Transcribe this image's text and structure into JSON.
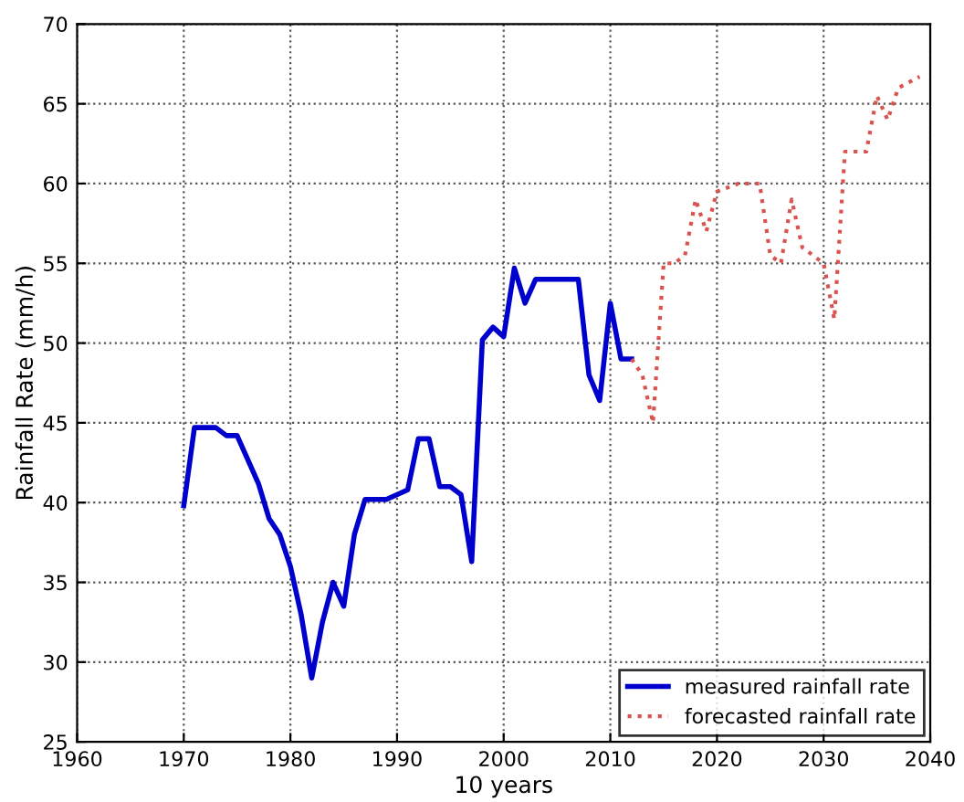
{
  "chart_data": {
    "type": "line",
    "xlabel": "10 years",
    "ylabel": "Rainfall Rate (mm/h)",
    "xlim": [
      1960,
      2040
    ],
    "xticks": [
      1960,
      1970,
      1980,
      1990,
      2000,
      2010,
      2020,
      2030,
      2040
    ],
    "ylim": [
      25,
      70
    ],
    "yticks": [
      25,
      30,
      35,
      40,
      45,
      50,
      55,
      60,
      65,
      70
    ],
    "grid": true,
    "legend": "bottom right",
    "marker": "none",
    "series": [
      {
        "name": "measured rainfall rate",
        "color": "#0000cc",
        "line_style": "solid",
        "x": [
          1970,
          1971,
          1973,
          1974,
          1975,
          1977,
          1978,
          1979,
          1980,
          1981,
          1982,
          1983,
          1984,
          1985,
          1986,
          1987,
          1989,
          1991,
          1992,
          1993,
          1994,
          1995,
          1996,
          1997,
          1998,
          1999,
          2000,
          2001,
          2002,
          2003,
          2007,
          2008,
          2009,
          2010,
          2011,
          2012
        ],
        "values": [
          39.8,
          44.7,
          44.7,
          44.2,
          44.2,
          41.2,
          39,
          38,
          36,
          33,
          29,
          32.5,
          35,
          33.5,
          38,
          40.2,
          40.2,
          40.8,
          44,
          44,
          41,
          41,
          40.5,
          36.3,
          50.2,
          51,
          50.4,
          54.7,
          52.5,
          54,
          54,
          48,
          46.4,
          52.5,
          49,
          49
        ]
      },
      {
        "name": "forecasted rainfall rate",
        "color": "#d9534f",
        "line_style": "dotted",
        "x": [
          2012,
          2013,
          2014,
          2015,
          2016,
          2017,
          2018,
          2019,
          2020,
          2022,
          2024,
          2025,
          2026,
          2027,
          2028,
          2030,
          2031,
          2032,
          2034,
          2035,
          2036,
          2037,
          2039
        ],
        "values": [
          49,
          48,
          45,
          55,
          55,
          55.5,
          59,
          57,
          59.5,
          60,
          60,
          55.5,
          55,
          59,
          56,
          55,
          51.5,
          62,
          62,
          65.5,
          64,
          66,
          66.7
        ]
      }
    ]
  }
}
